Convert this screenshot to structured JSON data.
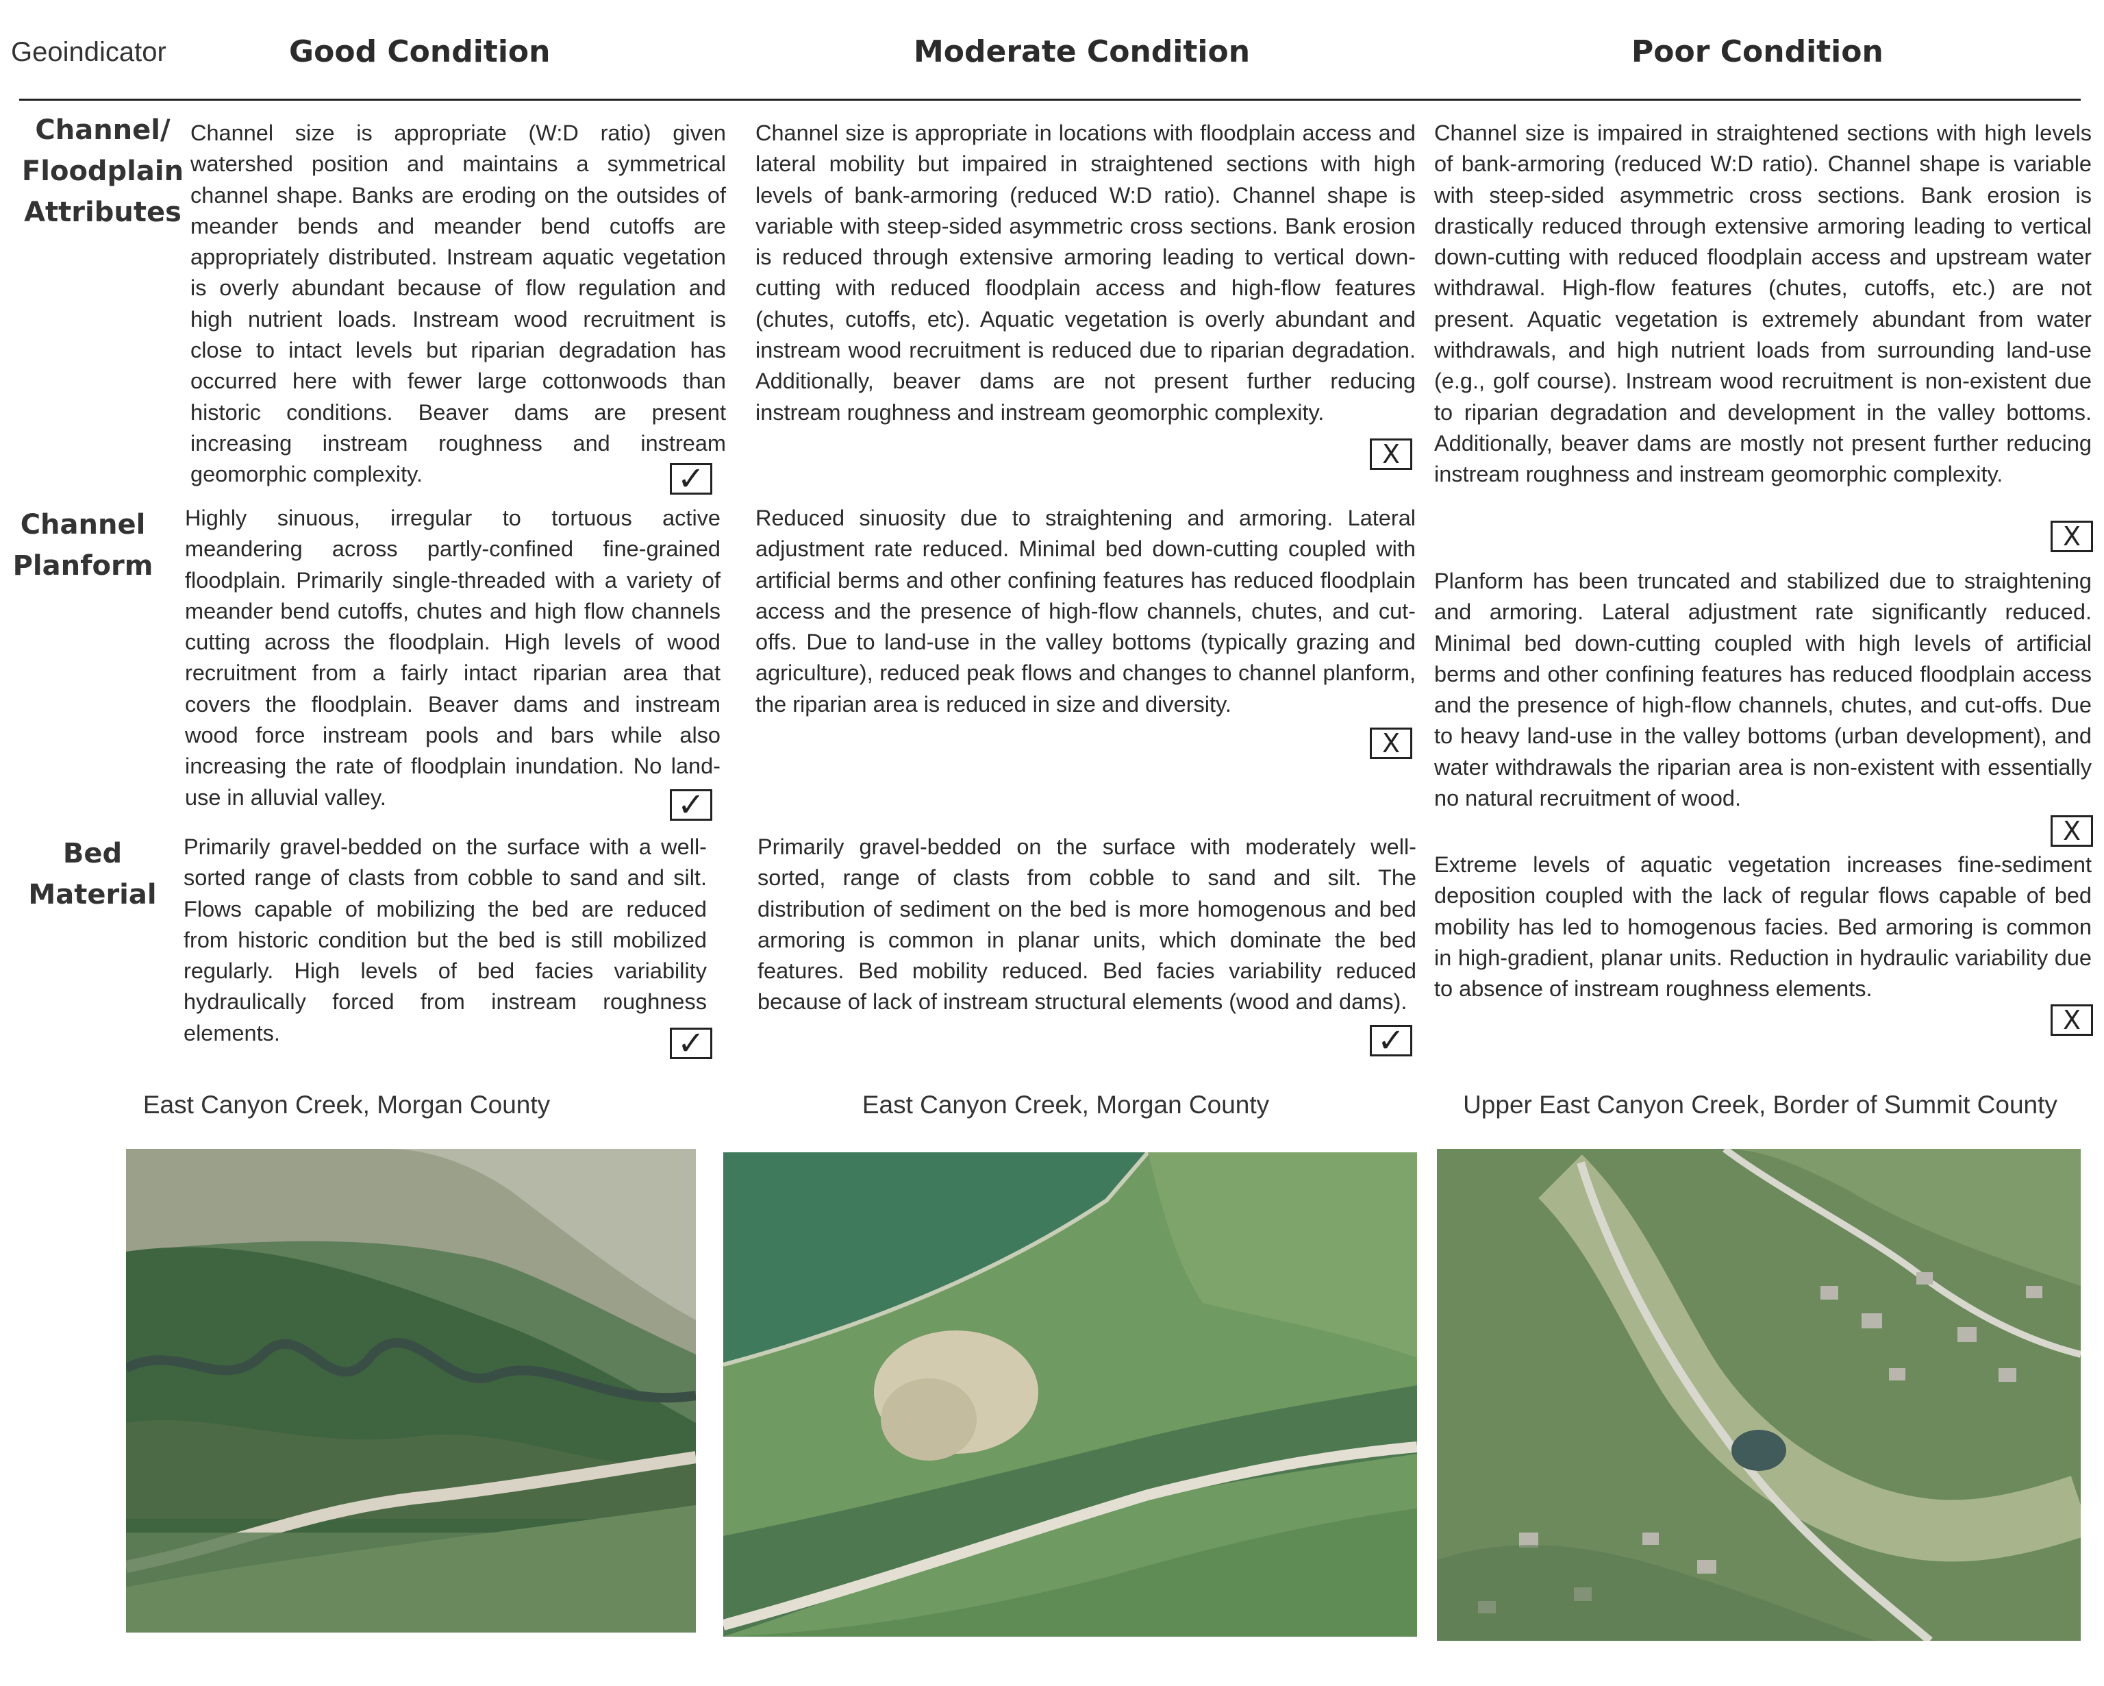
{
  "header": {
    "geoindicator": "Geoindicator",
    "good": "Good Condition",
    "moderate": "Moderate Condition",
    "poor": "Poor Condition"
  },
  "rows": [
    {
      "label": "Channel/\nFloodplain\nAttributes",
      "good": {
        "text": "Channel size is appropriate (W:D ratio) given watershed position and maintains a symmetrical channel shape. Banks are eroding on the outsides of meander bends and meander bend cutoffs are appropriately distributed. Instream aquatic vegetation is overly abundant because of flow regulation and high nutrient loads. Instream wood recruitment is close to intact levels but riparian degradation has occurred here with fewer large cottonwoods than historic conditions. Beaver dams are present increasing instream roughness and instream geomorphic complexity.",
        "mark": "✓"
      },
      "moderate": {
        "text": "Channel size is appropriate in locations with floodplain access and lateral mobility but impaired in straightened sections with high levels of bank-armoring (reduced W:D ratio). Channel shape is variable with steep-sided asymmetric cross sections. Bank erosion is reduced through extensive armoring leading to vertical down-cutting with reduced floodplain access and high-flow features (chutes, cutoffs, etc). Aquatic vegetation is overly abundant and instream wood recruitment is reduced due to riparian degradation. Additionally, beaver dams are not present further reducing instream roughness and instream geomorphic complexity.",
        "mark": "X"
      },
      "poor": {
        "text": "Channel size is impaired in straightened sections with high levels of bank-armoring (reduced W:D ratio). Channel shape is variable with steep-sided asymmetric cross sections. Bank erosion is drastically reduced through extensive armoring leading to vertical down-cutting with reduced floodplain access and upstream water withdrawal. High-flow features (chutes, cutoffs, etc.) are not present. Aquatic vegetation is extremely abundant from water withdrawals, and high nutrient loads from surrounding land-use (e.g., golf course). Instream wood recruitment is non-existent due to riparian degradation and development in the valley bottoms. Additionally, beaver dams are mostly not present further reducing instream roughness and instream geomorphic complexity.",
        "mark": "X"
      }
    },
    {
      "label": "Channel\nPlanform",
      "good": {
        "text": "Highly sinuous, irregular to tortuous active meandering across partly-confined fine-grained floodplain. Primarily single-threaded with a variety of meander bend cutoffs, chutes and high flow channels cutting across the floodplain. High levels of wood recruitment from a fairly intact riparian area that covers the floodplain. Beaver dams and instream wood force instream pools and bars while also increasing the rate of floodplain inundation. No land-use in alluvial valley.",
        "mark": "✓"
      },
      "moderate": {
        "text": "Reduced sinuosity due to straightening and armoring. Lateral adjustment rate reduced. Minimal bed down-cutting coupled with artificial berms and other confining features has reduced floodplain access and the presence of high-flow channels, chutes, and cut-offs. Due to land-use in the valley bottoms (typically grazing and agriculture), reduced peak flows and changes to channel planform, the riparian area is reduced in size and diversity.",
        "mark": "X"
      },
      "poor": {
        "text": "Planform has been truncated and stabilized due to straightening and armoring. Lateral adjustment rate significantly reduced. Minimal bed down-cutting coupled with high levels of artificial berms and other confining features has reduced floodplain access and the presence of high-flow channels, chutes, and cut-offs. Due to heavy land-use in the valley bottoms (urban development), and water withdrawals the riparian area is non-existent with essentially no natural recruitment of wood.",
        "mark": "X"
      }
    },
    {
      "label": "Bed\nMaterial",
      "good": {
        "text": "Primarily gravel-bedded on the surface with a well-sorted range of clasts from cobble to sand and silt. Flows capable of mobilizing the bed are reduced from historic condition but the bed is still mobilized regularly. High levels of bed facies variability hydraulically forced from instream roughness elements.",
        "mark": "✓"
      },
      "moderate": {
        "text": "Primarily gravel-bedded on the surface with moderately well-sorted, range of clasts from cobble to sand and silt. The distribution of sediment on the bed is more homogenous and bed armoring is common in planar units, which dominate the bed features. Bed mobility reduced. Bed facies variability reduced because of lack of instream structural elements (wood and dams).",
        "mark": "✓"
      },
      "poor": {
        "text": "Extreme levels of aquatic vegetation increases fine-sediment deposition coupled with the lack of regular flows capable of bed mobility has led to homogenous facies. Bed armoring is common in high-gradient, planar units. Reduction in hydraulic variability due to absence of instream roughness elements.",
        "mark": "X"
      }
    }
  ],
  "photos": [
    {
      "caption": "East Canyon Creek, Morgan County"
    },
    {
      "caption": "East Canyon Creek, Morgan County"
    },
    {
      "caption": "Upper East Canyon Creek, Border of Summit County"
    }
  ]
}
